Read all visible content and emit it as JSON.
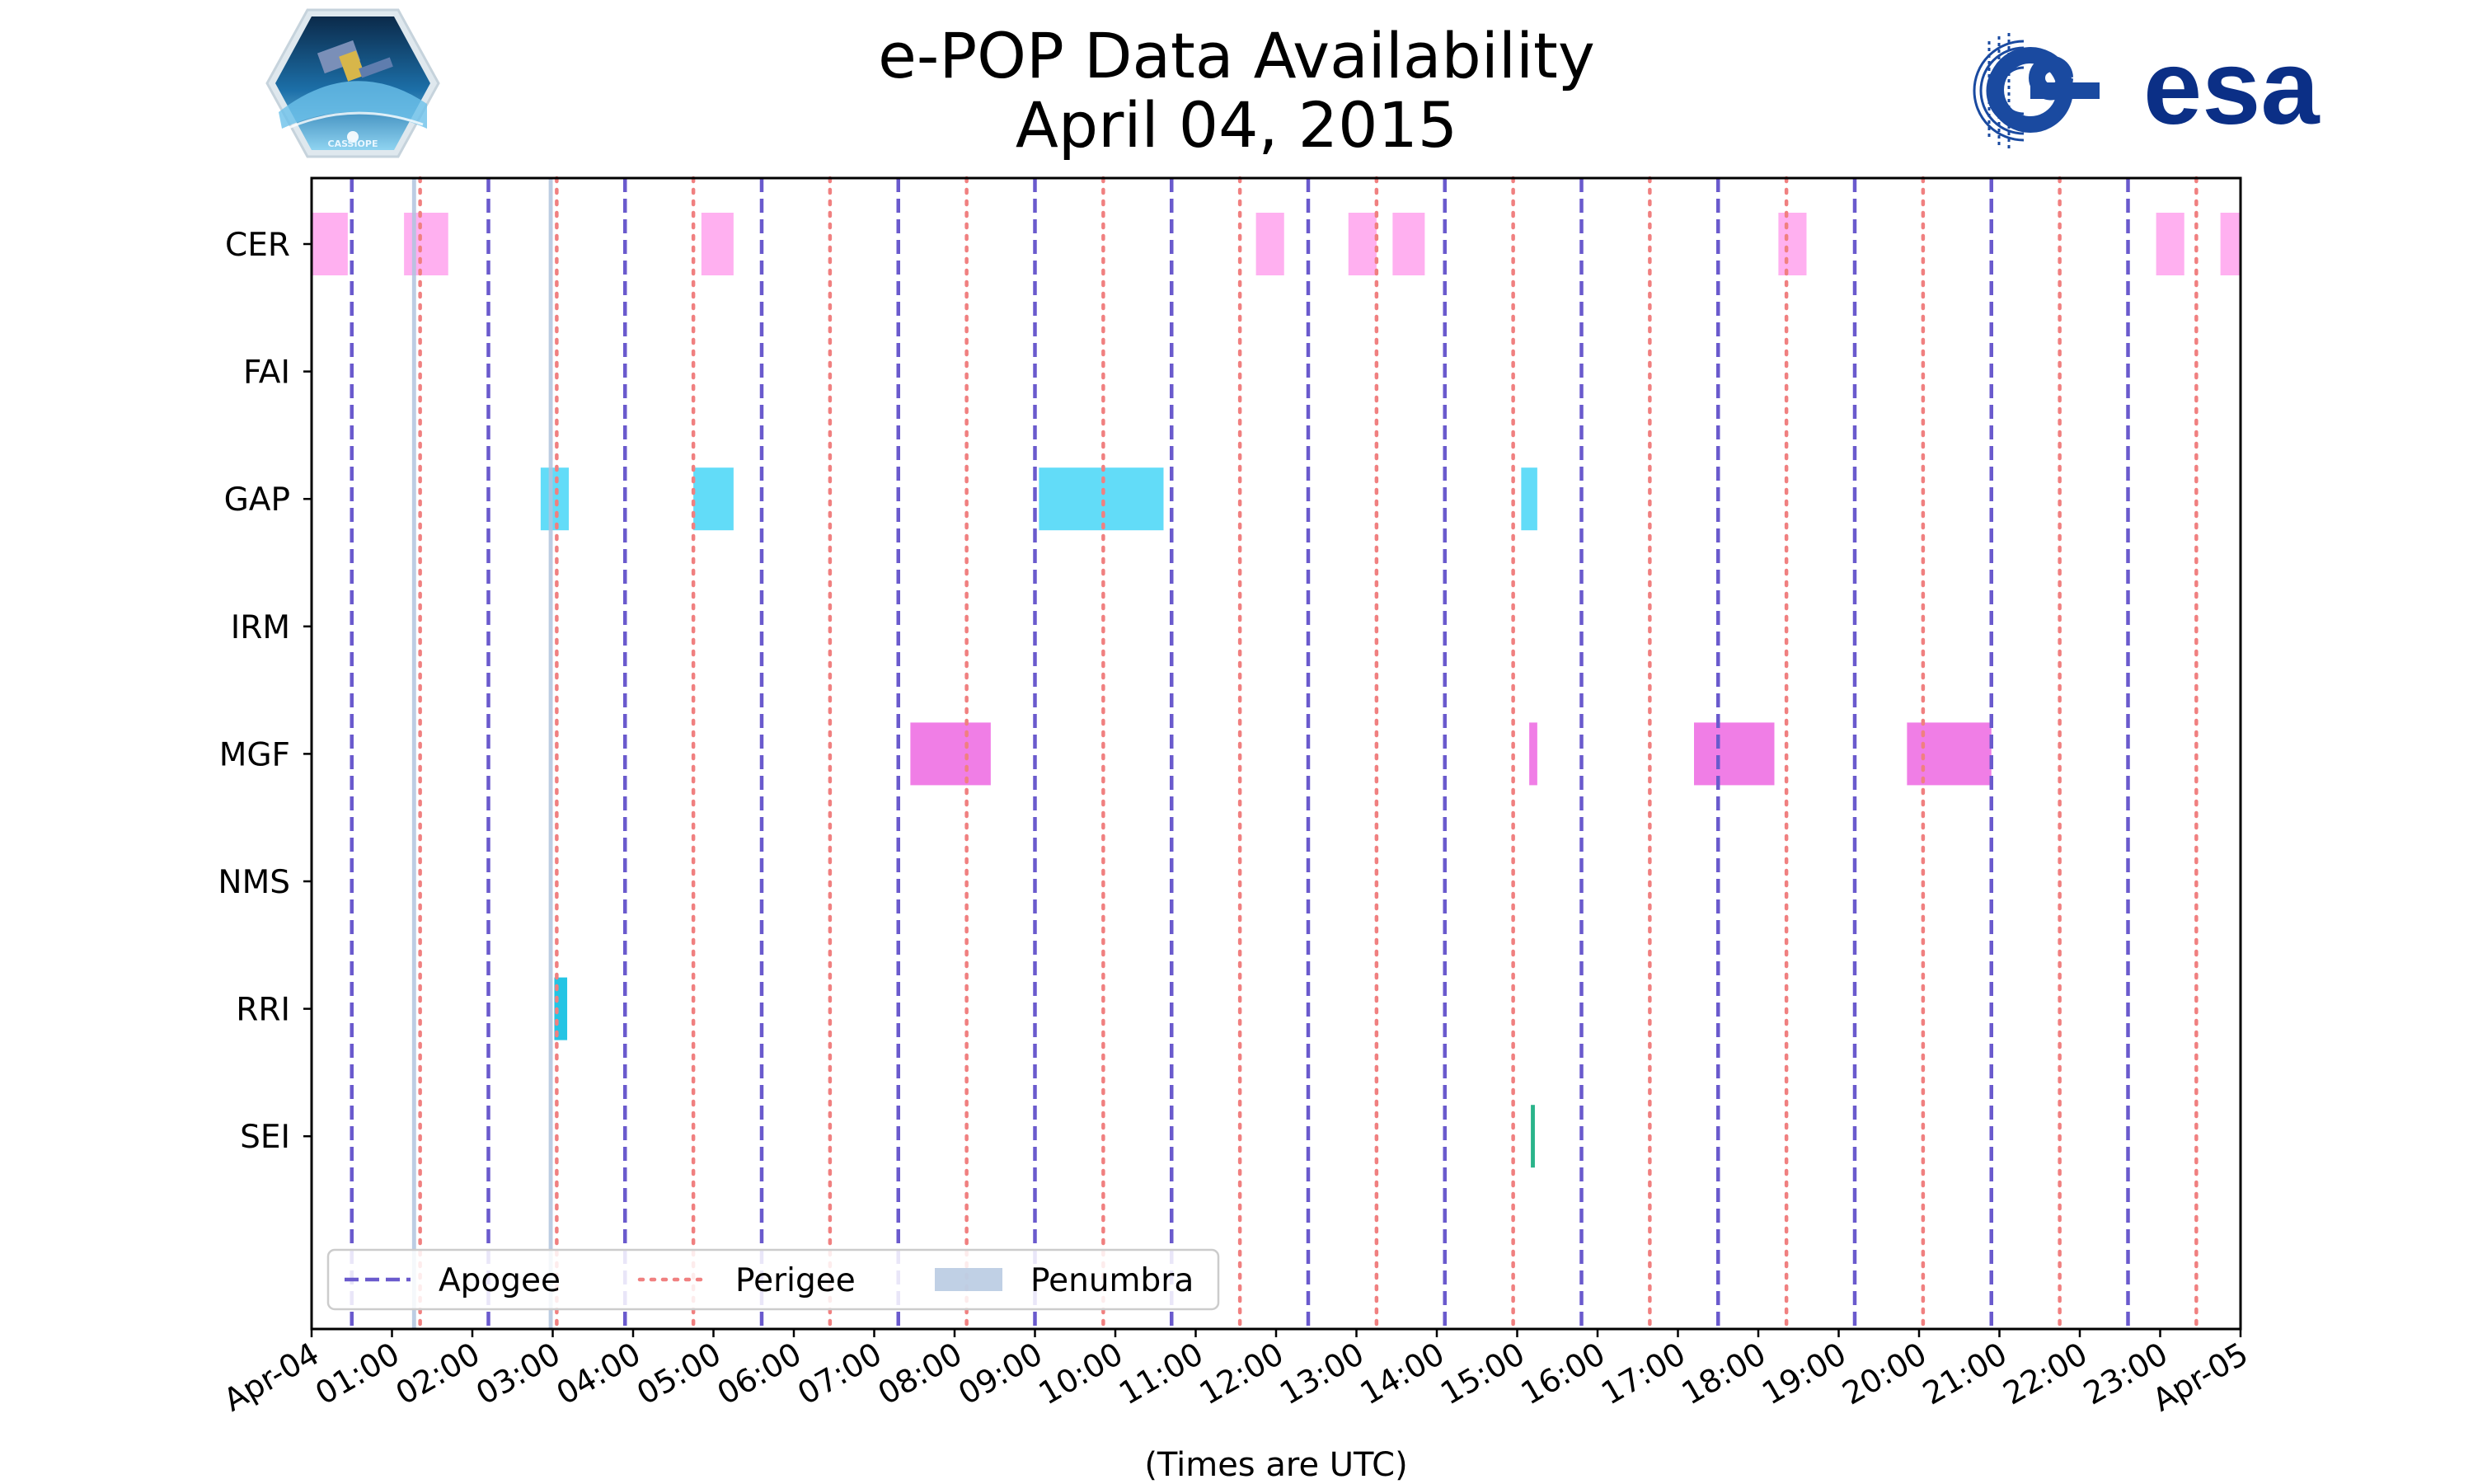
{
  "chart_data": {
    "type": "timeline",
    "title": "e-POP Data Availability",
    "subtitle": "April 04, 2015",
    "xlabel": "(Times are UTC)",
    "xlim_hours": [
      0,
      24
    ],
    "x_tick_labels": [
      "Apr-04",
      "01:00",
      "02:00",
      "03:00",
      "04:00",
      "05:00",
      "06:00",
      "07:00",
      "08:00",
      "09:00",
      "10:00",
      "11:00",
      "12:00",
      "13:00",
      "14:00",
      "15:00",
      "16:00",
      "17:00",
      "18:00",
      "19:00",
      "20:00",
      "21:00",
      "22:00",
      "23:00",
      "Apr-05"
    ],
    "instruments": [
      "CER",
      "FAI",
      "GAP",
      "IRM",
      "MGF",
      "NMS",
      "RRI",
      "SEI"
    ],
    "legend": {
      "apogee": "Apogee",
      "perigee": "Perigee",
      "penumbra": "Penumbra",
      "placement": "lower-left"
    },
    "apogee_hours": [
      0.5,
      2.2,
      3.9,
      5.6,
      7.3,
      9.0,
      10.7,
      12.4,
      14.1,
      15.8,
      17.5,
      19.2,
      20.9,
      22.6
    ],
    "perigee_hours": [
      1.35,
      3.05,
      4.75,
      6.45,
      8.15,
      9.85,
      11.55,
      13.25,
      14.95,
      16.65,
      18.35,
      20.05,
      21.75,
      23.45
    ],
    "penumbra_hours": [
      [
        1.25,
        1.3
      ],
      [
        2.95,
        3.0
      ]
    ],
    "intervals": [
      {
        "instrument": "CER",
        "start": 0.0,
        "end": 0.45,
        "color": "#ffb0f0"
      },
      {
        "instrument": "CER",
        "start": 1.15,
        "end": 1.7,
        "color": "#ffb0f0"
      },
      {
        "instrument": "CER",
        "start": 4.85,
        "end": 5.25,
        "color": "#ffb0f0"
      },
      {
        "instrument": "CER",
        "start": 11.75,
        "end": 12.1,
        "color": "#ffb0f0"
      },
      {
        "instrument": "CER",
        "start": 12.9,
        "end": 13.25,
        "color": "#ffb0f0"
      },
      {
        "instrument": "CER",
        "start": 13.45,
        "end": 13.85,
        "color": "#ffb0f0"
      },
      {
        "instrument": "CER",
        "start": 18.25,
        "end": 18.6,
        "color": "#ffb0f0"
      },
      {
        "instrument": "CER",
        "start": 22.95,
        "end": 23.3,
        "color": "#ffb0f0"
      },
      {
        "instrument": "CER",
        "start": 23.75,
        "end": 24.0,
        "color": "#ffb0f0"
      },
      {
        "instrument": "GAP",
        "start": 2.85,
        "end": 3.2,
        "color": "#62dcf8"
      },
      {
        "instrument": "GAP",
        "start": 4.75,
        "end": 5.25,
        "color": "#62dcf8"
      },
      {
        "instrument": "GAP",
        "start": 9.05,
        "end": 10.6,
        "color": "#62dcf8"
      },
      {
        "instrument": "GAP",
        "start": 15.05,
        "end": 15.25,
        "color": "#62dcf8"
      },
      {
        "instrument": "MGF",
        "start": 7.45,
        "end": 8.45,
        "color": "#f07ee6"
      },
      {
        "instrument": "MGF",
        "start": 15.15,
        "end": 15.25,
        "color": "#f07ee6"
      },
      {
        "instrument": "MGF",
        "start": 17.2,
        "end": 18.2,
        "color": "#f07ee6"
      },
      {
        "instrument": "MGF",
        "start": 19.85,
        "end": 20.9,
        "color": "#f07ee6"
      },
      {
        "instrument": "RRI",
        "start": 3.02,
        "end": 3.18,
        "color": "#24c4e4"
      },
      {
        "instrument": "SEI",
        "start": 15.17,
        "end": 15.22,
        "color": "#2ab48a"
      }
    ],
    "colors": {
      "apogee": "#6a5acd",
      "perigee": "#f08080",
      "penumbra": "#b0c4de"
    }
  },
  "logos": {
    "left_text": "CASSIOPE",
    "right_text": "esa"
  }
}
